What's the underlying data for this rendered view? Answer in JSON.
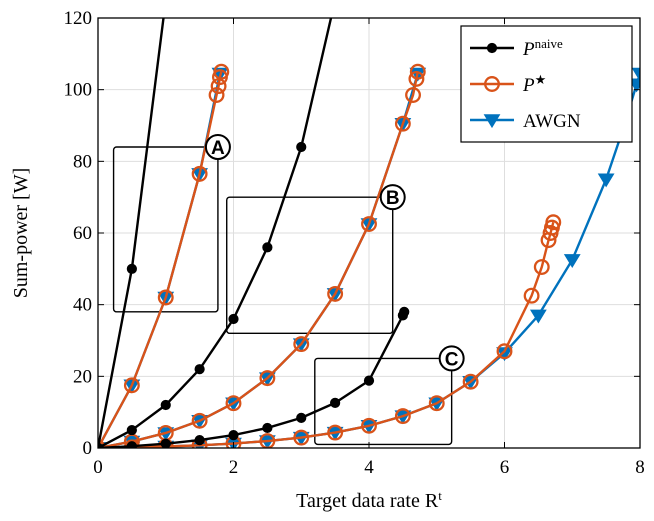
{
  "chart_data": {
    "type": "line",
    "xlabel": "Target data rate R",
    "xlabel_sup": "t",
    "ylabel": "Sum-power [W]",
    "xlim": [
      0,
      8
    ],
    "ylim": [
      0,
      120
    ],
    "xticks": [
      0,
      2,
      4,
      6,
      8
    ],
    "yticks": [
      0,
      20,
      40,
      60,
      80,
      100,
      120
    ],
    "grid": true,
    "legend_position": "top-right",
    "series": [
      {
        "name": "P",
        "name_sup": "naive",
        "style": "naive",
        "color": "#000000",
        "marker": "dot",
        "curves": [
          {
            "x": [
              0,
              0.5,
              1.0
            ],
            "y": [
              0,
              50,
              125
            ]
          },
          {
            "x": [
              0,
              0.5,
              1.0,
              1.5,
              2.0,
              2.5,
              3.0,
              3.5
            ],
            "y": [
              0,
              5,
              12,
              22,
              36,
              56,
              84,
              125
            ]
          },
          {
            "x": [
              0,
              0.5,
              1.0,
              1.5,
              2.0,
              2.5,
              3.0,
              3.5,
              4.0,
              4.5,
              4.52
            ],
            "y": [
              0,
              0.5,
              1.2,
              2.2,
              3.6,
              5.6,
              8.4,
              12.6,
              18.8,
              37,
              38
            ]
          }
        ]
      },
      {
        "name": "P",
        "name_sup": "★",
        "style": "star",
        "color": "#d95319",
        "marker": "circle",
        "curves": [
          {
            "x": [
              0,
              0.5,
              1.0,
              1.5,
              1.75,
              1.78,
              1.8,
              1.82
            ],
            "y": [
              0,
              17.5,
              42,
              76.5,
              98.5,
              101,
              103.5,
              105
            ]
          },
          {
            "x": [
              0,
              0.5,
              1.0,
              1.5,
              2.0,
              2.5,
              3.0,
              3.5,
              4.0,
              4.5,
              4.65,
              4.7,
              4.72
            ],
            "y": [
              0,
              1.8,
              4.2,
              7.6,
              12.5,
              19.5,
              29,
              43,
              62.5,
              90.5,
              98.5,
              103,
              105
            ]
          },
          {
            "x": [
              0,
              0.5,
              1.0,
              1.5,
              2.0,
              2.5,
              3.0,
              3.5,
              4.0,
              4.5,
              5.0,
              5.5,
              6.0,
              6.4,
              6.55,
              6.65,
              6.68,
              6.7,
              6.72
            ],
            "y": [
              0,
              0.18,
              0.42,
              0.76,
              1.25,
              1.95,
              2.9,
              4.3,
              6.2,
              8.9,
              12.5,
              18.5,
              27,
              42.5,
              50.5,
              58,
              60,
              61.5,
              63
            ]
          }
        ]
      },
      {
        "name": "AWGN",
        "style": "awgn",
        "color": "#0072bd",
        "marker": "triangle-down",
        "curves": [
          {
            "x": [
              0,
              0.5,
              1.0,
              1.5,
              1.8
            ],
            "y": [
              0,
              17.5,
              42,
              76.5,
              104.5
            ]
          },
          {
            "x": [
              0,
              0.5,
              1.0,
              1.5,
              2.0,
              2.5,
              3.0,
              3.5,
              4.0,
              4.5,
              4.72
            ],
            "y": [
              0,
              1.8,
              4.2,
              7.6,
              12.5,
              19.5,
              29,
              43,
              62.5,
              90.5,
              104.5
            ]
          },
          {
            "x": [
              0,
              0.5,
              1.0,
              1.5,
              2.0,
              2.5,
              3.0,
              3.5,
              4.0,
              4.5,
              5.0,
              5.5,
              6.0,
              6.5,
              7.0,
              7.5,
              7.75,
              7.95,
              8.0
            ],
            "y": [
              0,
              0.18,
              0.42,
              0.76,
              1.25,
              1.95,
              2.9,
              4.3,
              6.2,
              8.9,
              12.5,
              18.5,
              26.5,
              37,
              52.5,
              75,
              89,
              101.5,
              104.5
            ]
          }
        ]
      }
    ],
    "callouts": [
      {
        "label": "A",
        "box": {
          "x": [
            0.23,
            1.77
          ],
          "y": [
            38,
            84
          ]
        },
        "circle": {
          "x": 1.77,
          "y": 84
        }
      },
      {
        "label": "B",
        "box": {
          "x": [
            1.9,
            4.35
          ],
          "y": [
            32,
            70
          ]
        },
        "circle": {
          "x": 4.35,
          "y": 70
        }
      },
      {
        "label": "C",
        "box": {
          "x": [
            3.2,
            5.22
          ],
          "y": [
            1,
            25
          ]
        },
        "circle": {
          "x": 5.22,
          "y": 25
        }
      }
    ]
  }
}
